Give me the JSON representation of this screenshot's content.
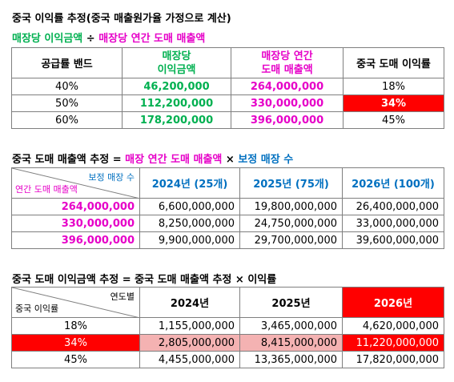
{
  "section1": {
    "title": "중국 이익률 추정(중국 매출원가율 가정으로 계산)",
    "formula_left": "매장당 이익금액",
    "formula_op": " ÷ ",
    "formula_right": "매장당 연간 도매 매출액",
    "headers": [
      "공급률 밴드",
      "매장당\n이익금액",
      "매장당 연간\n도매 매출액",
      "중국 도매 이익률"
    ],
    "header_line1": [
      "공급률 밴드",
      "매장당",
      "매장당 연간",
      "중국 도매 이익률"
    ],
    "header_line2": [
      "",
      "이익금액",
      "도매 매출액",
      ""
    ],
    "rows": [
      {
        "band": "40%",
        "profit": "46,200,000",
        "sales": "264,000,000",
        "margin": "18%"
      },
      {
        "band": "50%",
        "profit": "112,200,000",
        "sales": "330,000,000",
        "margin": "34%"
      },
      {
        "band": "60%",
        "profit": "178,200,000",
        "sales": "396,000,000",
        "margin": "45%"
      }
    ]
  },
  "section2": {
    "title_a": "중국 도매 매출액 추정",
    "eq": " = ",
    "title_b": "매장 연간 도매 매출액",
    "times": " × ",
    "title_c": "보정 매장 수",
    "corner_top": "보정 매장 수",
    "corner_bottom": "연간 도매 매출액",
    "years": [
      "2024년 (25개)",
      "2025년 (75개)",
      "2026년 (100개)"
    ],
    "rows": [
      {
        "label": "264,000,000",
        "v": [
          "6,600,000,000",
          "19,800,000,000",
          "26,400,000,000"
        ]
      },
      {
        "label": "330,000,000",
        "v": [
          "8,250,000,000",
          "24,750,000,000",
          "33,000,000,000"
        ]
      },
      {
        "label": "396,000,000",
        "v": [
          "9,900,000,000",
          "29,700,000,000",
          "39,600,000,000"
        ]
      }
    ]
  },
  "section3": {
    "title_a": "중국 도매 이익금액 추정",
    "eq": " = ",
    "title_b": "중국 도매 매출액 추정",
    "times": " × ",
    "title_c": "이익률",
    "corner_top": "연도별",
    "corner_bottom": "중국 이익률",
    "years": [
      "2024년",
      "2025년",
      "2026년"
    ],
    "rows": [
      {
        "label": "18%",
        "v": [
          "1,155,000,000",
          "3,465,000,000",
          "4,620,000,000"
        ]
      },
      {
        "label": "34%",
        "v": [
          "2,805,000,000",
          "8,415,000,000",
          "11,220,000,000"
        ]
      },
      {
        "label": "45%",
        "v": [
          "4,455,000,000",
          "13,365,000,000",
          "17,820,000,000"
        ]
      }
    ]
  },
  "colors": {
    "green": "#00b050",
    "magenta": "#e600c8",
    "blue": "#0070c0",
    "red": "#ff0000",
    "pink": "#f4b2b2"
  }
}
